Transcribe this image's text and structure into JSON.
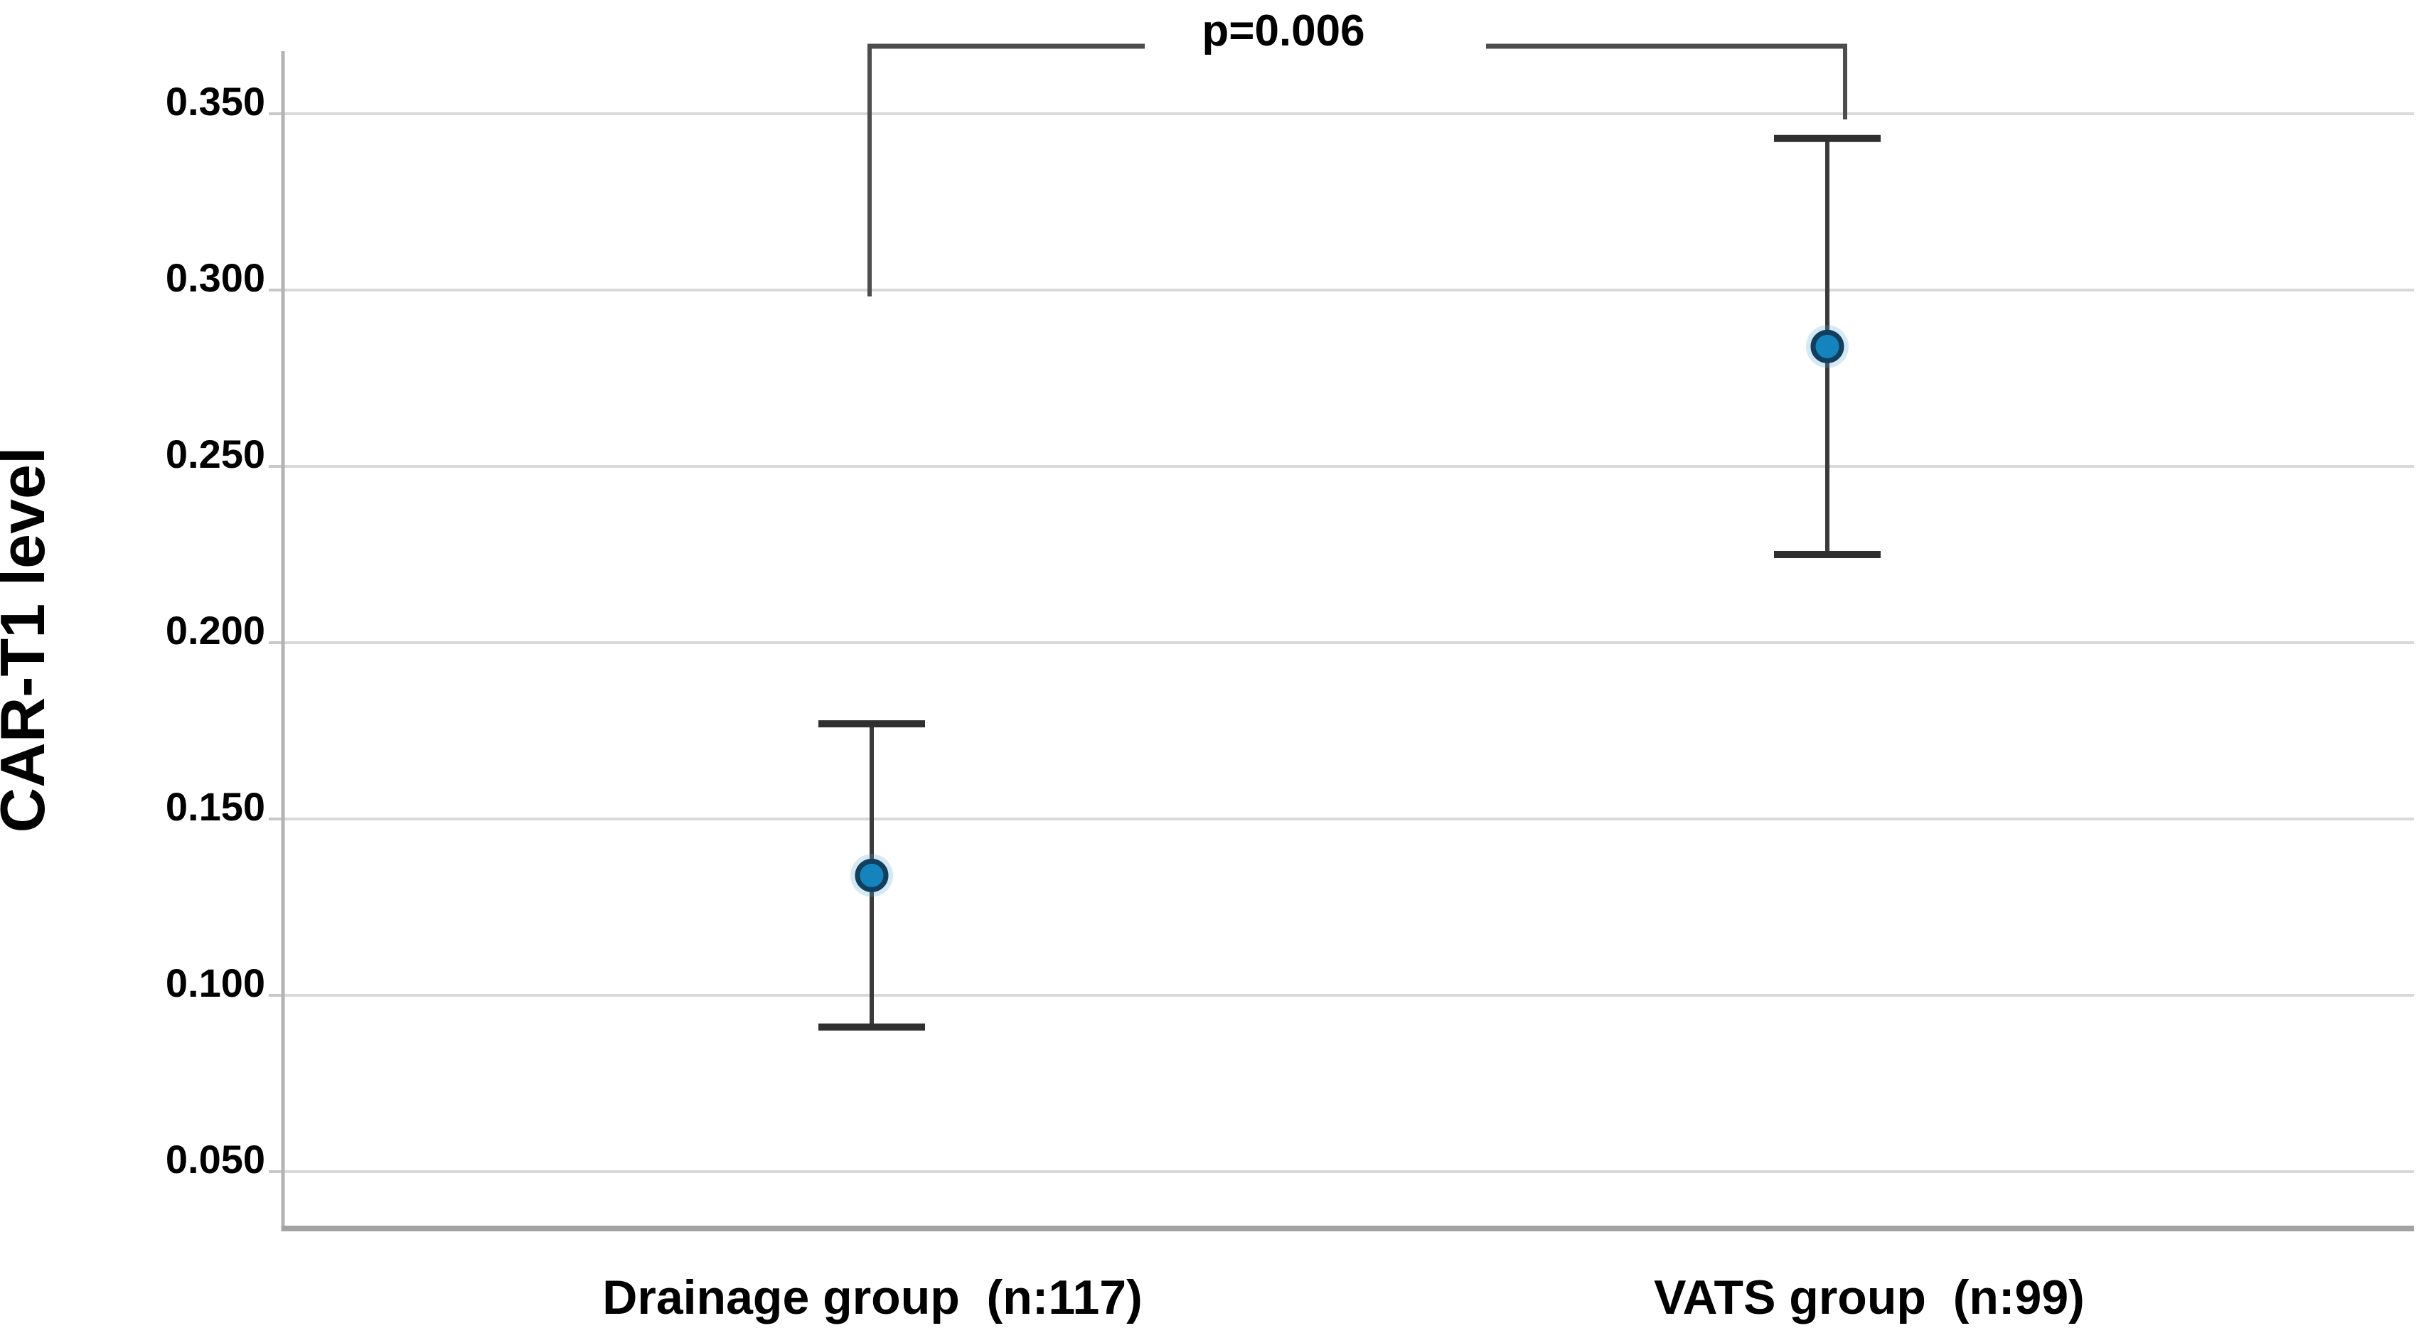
{
  "figure": {
    "background": "#ffffff",
    "description": "Mean with error bars plot comparing CAR-T1 level between two groups with significance bracket"
  },
  "chart_data": {
    "type": "scatter",
    "subtype": "mean-with-error-bars",
    "title": "",
    "xlabel": "",
    "ylabel": "CAR-T1 level",
    "categories": [
      "Drainage group  (n:117)",
      "VATS group  (n:99)"
    ],
    "series": [
      {
        "name": "CAR-T1 level (mean, error bars)",
        "points": [
          {
            "category": "Drainage group  (n:117)",
            "mean": 0.134,
            "upper": 0.177,
            "lower": 0.091
          },
          {
            "category": "VATS group  (n:99)",
            "mean": 0.284,
            "upper": 0.343,
            "lower": 0.225
          }
        ]
      }
    ],
    "yticks": [
      {
        "value": 0.35,
        "label": "0.350"
      },
      {
        "value": 0.3,
        "label": "0.300"
      },
      {
        "value": 0.25,
        "label": "0.250"
      },
      {
        "value": 0.2,
        "label": "0.200"
      },
      {
        "value": 0.15,
        "label": "0.150"
      },
      {
        "value": 0.1,
        "label": "0.100"
      },
      {
        "value": 0.05,
        "label": "0.050"
      }
    ],
    "ylim": [
      0.034,
      0.368
    ],
    "grid": "horizontal-only",
    "legend": "none",
    "annotation": {
      "type": "significance-bracket",
      "text": "p=0.006",
      "between": [
        "Drainage group  (n:117)",
        "VATS group  (n:99)"
      ]
    },
    "colors": {
      "point_fill": "#1583bd",
      "point_edge": "#123f5e",
      "point_halo": "#58a8d5",
      "error_bar_line": "#3a3a3a",
      "error_bar_cap": "#303030",
      "bracket": "#4d4d4d",
      "gridline": "#d9d9d9",
      "tick": "#c8c8c8",
      "y_axis": "#b3b3b3",
      "x_axis": "#a3a3a3",
      "text": "#000000"
    }
  }
}
